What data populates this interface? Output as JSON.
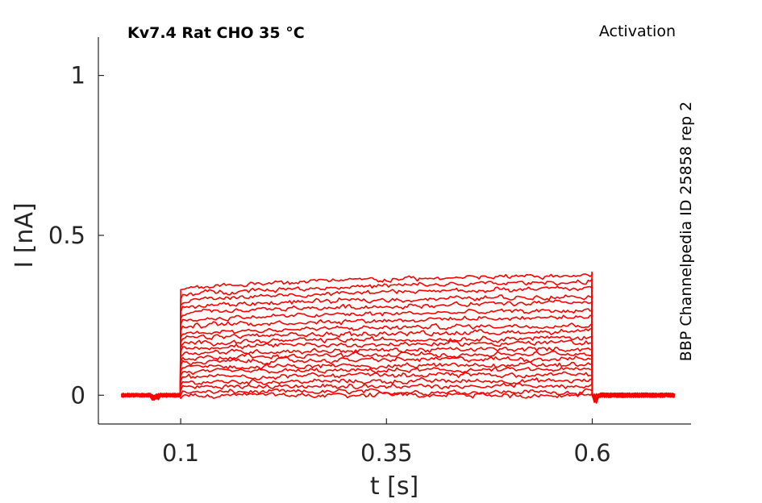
{
  "chart_data": {
    "type": "line",
    "title_left": "Kv7.4  Rat  CHO  35 °C",
    "title_right": "Activation",
    "side_label": "BBP Channelpedia ID 25858 rep 2",
    "xlabel": "t [s]",
    "ylabel": "I [nA]",
    "xlim": [
      0.0,
      0.72
    ],
    "ylim": [
      -0.09,
      1.12
    ],
    "xticks": [
      0.1,
      0.35,
      0.6
    ],
    "xtick_labels": [
      "0.1",
      "0.35",
      "0.6"
    ],
    "yticks": [
      0,
      0.5,
      1
    ],
    "ytick_labels": [
      "0",
      "0.5",
      "1"
    ],
    "grid": false,
    "line_color": "#ff0000",
    "step": {
      "t_start": 0.1,
      "t_end": 0.6,
      "baseline_t_start": 0.028,
      "baseline_t_end": 0.7
    },
    "series": [
      {
        "values": {
          "step_start": 0.0,
          "step_end": 0.0
        }
      },
      {
        "values": {
          "step_start": 0.01,
          "step_end": 0.01
        }
      },
      {
        "values": {
          "step_start": 0.025,
          "step_end": 0.03
        }
      },
      {
        "values": {
          "step_start": 0.04,
          "step_end": 0.045
        }
      },
      {
        "values": {
          "step_start": 0.055,
          "step_end": 0.065
        }
      },
      {
        "values": {
          "step_start": 0.07,
          "step_end": 0.08
        }
      },
      {
        "values": {
          "step_start": 0.085,
          "step_end": 0.095
        }
      },
      {
        "values": {
          "step_start": 0.1,
          "step_end": 0.115
        }
      },
      {
        "values": {
          "step_start": 0.115,
          "step_end": 0.13
        }
      },
      {
        "values": {
          "step_start": 0.13,
          "step_end": 0.145
        }
      },
      {
        "values": {
          "step_start": 0.145,
          "step_end": 0.165
        }
      },
      {
        "values": {
          "step_start": 0.16,
          "step_end": 0.18
        }
      },
      {
        "values": {
          "step_start": 0.175,
          "step_end": 0.2
        }
      },
      {
        "values": {
          "step_start": 0.19,
          "step_end": 0.22
        }
      },
      {
        "values": {
          "step_start": 0.21,
          "step_end": 0.245
        }
      },
      {
        "values": {
          "step_start": 0.23,
          "step_end": 0.265
        }
      },
      {
        "values": {
          "step_start": 0.25,
          "step_end": 0.29
        }
      },
      {
        "values": {
          "step_start": 0.27,
          "step_end": 0.31
        }
      },
      {
        "values": {
          "step_start": 0.29,
          "step_end": 0.335
        }
      },
      {
        "values": {
          "step_start": 0.31,
          "step_end": 0.355
        }
      },
      {
        "values": {
          "step_start": 0.33,
          "step_end": 0.375
        }
      }
    ]
  }
}
